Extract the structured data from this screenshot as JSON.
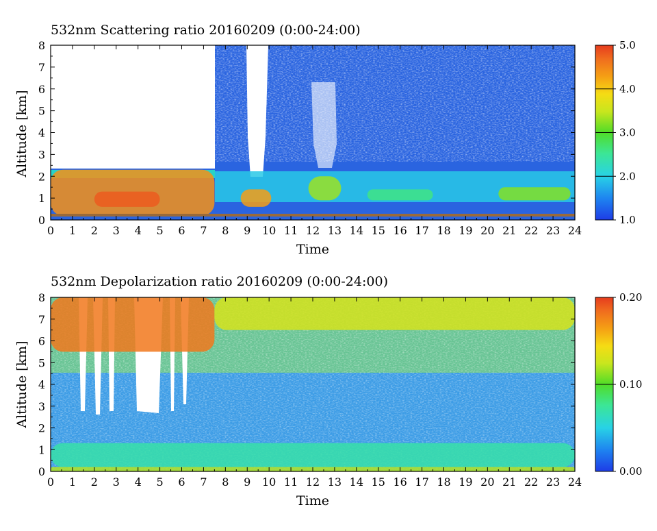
{
  "chart_data": [
    {
      "type": "heatmap",
      "title": "532nm Scattering ratio  20160209 (0:00-24:00)",
      "xlabel": "Time",
      "ylabel": "Altitude [km]",
      "xlim": [
        0,
        24
      ],
      "ylim": [
        0,
        8
      ],
      "x_ticks": [
        "0",
        "1",
        "2",
        "3",
        "4",
        "5",
        "6",
        "7",
        "8",
        "9",
        "10",
        "11",
        "12",
        "13",
        "14",
        "15",
        "16",
        "17",
        "18",
        "19",
        "20",
        "21",
        "22",
        "23",
        "24"
      ],
      "y_ticks": [
        "0",
        "1",
        "2",
        "3",
        "4",
        "5",
        "6",
        "7",
        "8"
      ],
      "colorbar": {
        "range": [
          1.0,
          5.0
        ],
        "tick_labels": [
          "1.0",
          "2.0",
          "3.0",
          "4.0",
          "5.0"
        ],
        "tick_values": [
          1.0,
          2.0,
          3.0,
          4.0,
          5.0
        ]
      },
      "features": [
        {
          "t_start": 0.0,
          "t_end": 7.5,
          "z_bottom": 0.2,
          "z_top": 2.3,
          "value": 4.4
        },
        {
          "t_start": 2.0,
          "t_end": 5.0,
          "z_bottom": 0.6,
          "z_top": 1.3,
          "value": 4.8
        },
        {
          "t_start": 8.7,
          "t_end": 10.1,
          "z_bottom": 0.6,
          "z_top": 1.4,
          "value": 4.3
        },
        {
          "t_start": 11.8,
          "t_end": 13.3,
          "z_bottom": 0.9,
          "z_top": 2.0,
          "value": 3.3
        },
        {
          "t_start": 14.5,
          "t_end": 17.5,
          "z_bottom": 0.9,
          "z_top": 1.4,
          "value": 2.6
        },
        {
          "t_start": 20.5,
          "t_end": 23.8,
          "z_bottom": 0.9,
          "z_top": 1.5,
          "value": 3.2
        }
      ]
    },
    {
      "type": "heatmap",
      "title": "532nm Depolarization ratio  20160209 (0:00-24:00)",
      "xlabel": "Time",
      "ylabel": "Altitude [km]",
      "xlim": [
        0,
        24
      ],
      "ylim": [
        0,
        8
      ],
      "x_ticks": [
        "0",
        "1",
        "2",
        "3",
        "4",
        "5",
        "6",
        "7",
        "8",
        "9",
        "10",
        "11",
        "12",
        "13",
        "14",
        "15",
        "16",
        "17",
        "18",
        "19",
        "20",
        "21",
        "22",
        "23",
        "24"
      ],
      "y_ticks": [
        "0",
        "1",
        "2",
        "3",
        "4",
        "5",
        "6",
        "7",
        "8"
      ],
      "colorbar": {
        "range": [
          0.0,
          0.2
        ],
        "tick_labels": [
          "0.00",
          "0.10",
          "0.20"
        ],
        "tick_values": [
          0.0,
          0.1,
          0.2
        ]
      },
      "features": [
        {
          "t_start": 0.0,
          "t_end": 7.5,
          "z_bottom": 5.5,
          "z_top": 8.0,
          "value": 0.18
        },
        {
          "t_start": 7.5,
          "t_end": 24.0,
          "z_bottom": 6.5,
          "z_top": 8.0,
          "value": 0.13
        },
        {
          "t_start": 0.0,
          "t_end": 24.0,
          "z_bottom": 0.2,
          "z_top": 1.3,
          "value": 0.07
        },
        {
          "t_start": 0.0,
          "t_end": 24.0,
          "z_bottom": 0.0,
          "z_top": 0.2,
          "value": 0.12
        }
      ]
    }
  ]
}
